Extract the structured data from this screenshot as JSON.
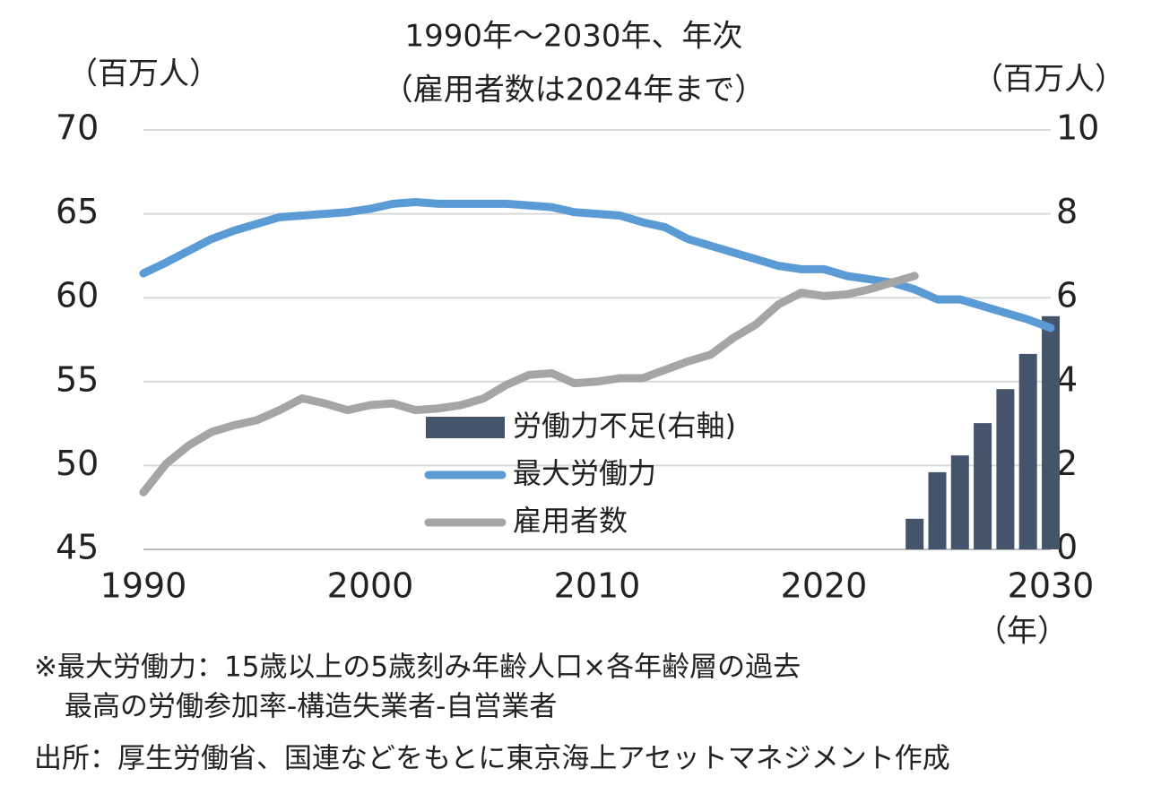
{
  "chart_data": {
    "type": "line",
    "title": [
      "1990年～2030年、年次",
      "（雇用者数は2024年まで）"
    ],
    "y_unit": "（百万人）",
    "y2_unit": "（百万人）",
    "x_unit": "（年）",
    "x": [
      1990,
      1991,
      1992,
      1993,
      1994,
      1995,
      1996,
      1997,
      1998,
      1999,
      2000,
      2001,
      2002,
      2003,
      2004,
      2005,
      2006,
      2007,
      2008,
      2009,
      2010,
      2011,
      2012,
      2013,
      2014,
      2015,
      2016,
      2017,
      2018,
      2019,
      2020,
      2021,
      2022,
      2023,
      2024,
      2025,
      2026,
      2027,
      2028,
      2029,
      2030
    ],
    "xlim": [
      1990,
      2030
    ],
    "xticks": [
      1990,
      2000,
      2010,
      2020,
      2030
    ],
    "ylim": [
      45,
      70
    ],
    "yticks": [
      45,
      50,
      55,
      60,
      65,
      70
    ],
    "y2lim": [
      0,
      10
    ],
    "y2ticks": [
      0,
      2,
      4,
      6,
      8,
      10
    ],
    "grid": true,
    "legend": "center",
    "series": [
      {
        "name": "労働力不足(右軸)",
        "type": "bar",
        "axis": "y2",
        "color": "#44546a",
        "values": [
          null,
          null,
          null,
          null,
          null,
          null,
          null,
          null,
          null,
          null,
          null,
          null,
          null,
          null,
          null,
          null,
          null,
          null,
          null,
          null,
          null,
          null,
          null,
          null,
          null,
          null,
          null,
          null,
          null,
          null,
          null,
          null,
          null,
          null,
          0.73,
          1.84,
          2.24,
          3.01,
          3.82,
          4.66,
          5.56
        ]
      },
      {
        "name": "最大労働力",
        "type": "line",
        "color": "#5b9bd5",
        "values": [
          61.45,
          62.1,
          62.8,
          63.5,
          64.0,
          64.4,
          64.8,
          64.9,
          65.0,
          65.1,
          65.3,
          65.6,
          65.7,
          65.6,
          65.6,
          65.6,
          65.6,
          65.5,
          65.4,
          65.1,
          65.0,
          64.9,
          64.5,
          64.2,
          63.5,
          63.1,
          62.7,
          62.3,
          61.9,
          61.7,
          61.7,
          61.3,
          61.1,
          60.9,
          60.5,
          59.9,
          59.9,
          59.5,
          59.1,
          58.7,
          58.2
        ]
      },
      {
        "name": "雇用者数",
        "type": "line",
        "color": "#a5a5a5",
        "values": [
          48.4,
          50.1,
          51.2,
          52.0,
          52.4,
          52.7,
          53.3,
          54.0,
          53.7,
          53.3,
          53.6,
          53.7,
          53.3,
          53.4,
          53.6,
          54.0,
          54.8,
          55.4,
          55.5,
          54.9,
          55.0,
          55.2,
          55.2,
          55.7,
          56.2,
          56.6,
          57.6,
          58.4,
          59.6,
          60.3,
          60.1,
          60.2,
          60.5,
          60.9,
          61.3,
          null,
          null,
          null,
          null,
          null,
          null
        ]
      }
    ],
    "notes": [
      "※最大労働力：15歳以上の5歳刻み年齢人口×各年齢層の過去",
      "最高の労働参加率-構造失業者-自営業者"
    ],
    "source": "出所：厚生労働省、国連などをもとに東京海上アセットマネジメント作成"
  }
}
